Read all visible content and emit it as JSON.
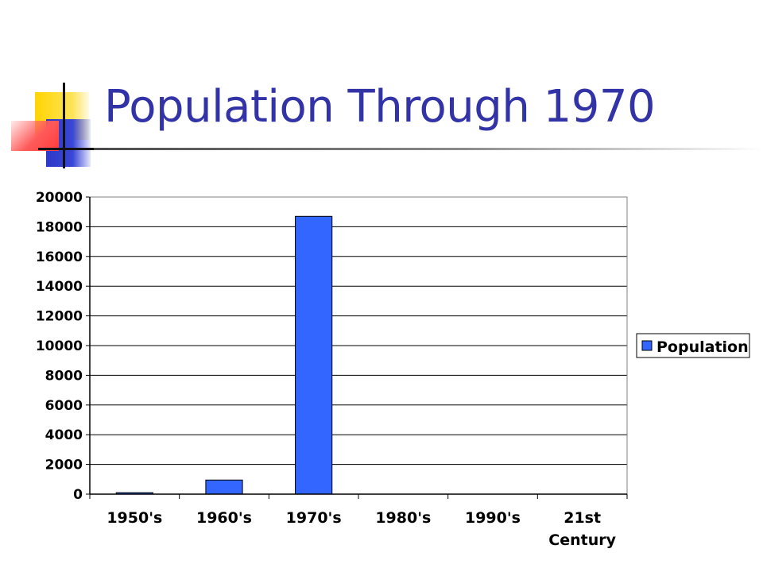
{
  "slide": {
    "title": "Population Through 1970"
  },
  "chart_data": {
    "type": "bar",
    "categories": [
      "1950's",
      "1960's",
      "1970's",
      "1980's",
      "1990's",
      "21st\nCentury"
    ],
    "series": [
      {
        "name": "Population",
        "values": [
          100,
          950,
          18700,
          0,
          0,
          0
        ],
        "color": "#3366ff"
      }
    ],
    "ylim": [
      0,
      20000
    ],
    "yticks": [
      0,
      2000,
      4000,
      6000,
      8000,
      10000,
      12000,
      14000,
      16000,
      18000,
      20000
    ],
    "grid": true,
    "legend": "right",
    "title": "",
    "xlabel": "",
    "ylabel": ""
  }
}
